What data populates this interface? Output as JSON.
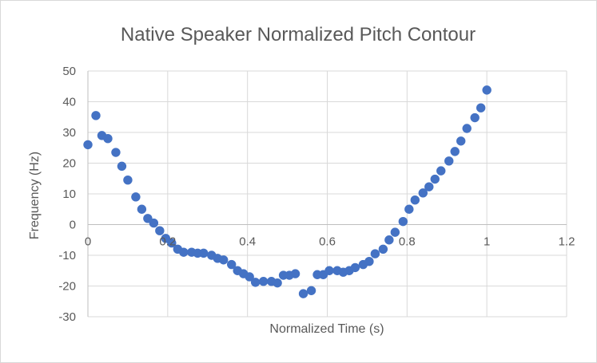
{
  "chart_data": {
    "type": "scatter",
    "title": "Native Speaker Normalized Pitch Contour",
    "xlabel": "Normalized Time (s)",
    "ylabel": "Frequency (Hz)",
    "xlim": [
      0,
      1.2
    ],
    "ylim": [
      -30,
      50
    ],
    "xticks": [
      0,
      0.2,
      0.4,
      0.6,
      0.8,
      1,
      1.2
    ],
    "yticks": [
      -30,
      -20,
      -10,
      0,
      10,
      20,
      30,
      40,
      50
    ],
    "xtick_labels": [
      "0",
      "0.2",
      "0.4",
      "0.6",
      "0.8",
      "1",
      "1.2"
    ],
    "ytick_labels": [
      "-30",
      "-20",
      "-10",
      "0",
      "10",
      "20",
      "30",
      "40",
      "50"
    ],
    "grid": true,
    "legend": "none",
    "series": [
      {
        "color": "#4472C4",
        "points": [
          {
            "x": 0.0,
            "y": 26
          },
          {
            "x": 0.02,
            "y": 35.5
          },
          {
            "x": 0.035,
            "y": 29
          },
          {
            "x": 0.05,
            "y": 28
          },
          {
            "x": 0.07,
            "y": 23.5
          },
          {
            "x": 0.085,
            "y": 19
          },
          {
            "x": 0.1,
            "y": 14.5
          },
          {
            "x": 0.12,
            "y": 9
          },
          {
            "x": 0.135,
            "y": 5
          },
          {
            "x": 0.15,
            "y": 2
          },
          {
            "x": 0.165,
            "y": 0.5
          },
          {
            "x": 0.18,
            "y": -2
          },
          {
            "x": 0.195,
            "y": -4.5
          },
          {
            "x": 0.21,
            "y": -6
          },
          {
            "x": 0.225,
            "y": -8
          },
          {
            "x": 0.24,
            "y": -9
          },
          {
            "x": 0.26,
            "y": -9
          },
          {
            "x": 0.275,
            "y": -9.3
          },
          {
            "x": 0.29,
            "y": -9.3
          },
          {
            "x": 0.31,
            "y": -10
          },
          {
            "x": 0.325,
            "y": -11
          },
          {
            "x": 0.34,
            "y": -11.5
          },
          {
            "x": 0.36,
            "y": -13
          },
          {
            "x": 0.375,
            "y": -15
          },
          {
            "x": 0.39,
            "y": -16
          },
          {
            "x": 0.405,
            "y": -17
          },
          {
            "x": 0.42,
            "y": -18.8
          },
          {
            "x": 0.44,
            "y": -18.5
          },
          {
            "x": 0.46,
            "y": -18.5
          },
          {
            "x": 0.475,
            "y": -19
          },
          {
            "x": 0.49,
            "y": -16.5
          },
          {
            "x": 0.505,
            "y": -16.5
          },
          {
            "x": 0.52,
            "y": -16
          },
          {
            "x": 0.54,
            "y": -22.5
          },
          {
            "x": 0.56,
            "y": -21.5
          },
          {
            "x": 0.575,
            "y": -16.3
          },
          {
            "x": 0.59,
            "y": -16.3
          },
          {
            "x": 0.605,
            "y": -15
          },
          {
            "x": 0.625,
            "y": -15
          },
          {
            "x": 0.64,
            "y": -15.5
          },
          {
            "x": 0.655,
            "y": -15
          },
          {
            "x": 0.67,
            "y": -14
          },
          {
            "x": 0.69,
            "y": -13
          },
          {
            "x": 0.705,
            "y": -12
          },
          {
            "x": 0.72,
            "y": -9.5
          },
          {
            "x": 0.74,
            "y": -8
          },
          {
            "x": 0.755,
            "y": -5
          },
          {
            "x": 0.77,
            "y": -2.5
          },
          {
            "x": 0.79,
            "y": 1
          },
          {
            "x": 0.805,
            "y": 5
          },
          {
            "x": 0.82,
            "y": 8
          },
          {
            "x": 0.84,
            "y": 10.3
          },
          {
            "x": 0.855,
            "y": 12.3
          },
          {
            "x": 0.87,
            "y": 14.8
          },
          {
            "x": 0.885,
            "y": 17.5
          },
          {
            "x": 0.905,
            "y": 20.7
          },
          {
            "x": 0.92,
            "y": 23.8
          },
          {
            "x": 0.935,
            "y": 27.2
          },
          {
            "x": 0.95,
            "y": 31.3
          },
          {
            "x": 0.97,
            "y": 34.8
          },
          {
            "x": 0.985,
            "y": 38
          },
          {
            "x": 1.0,
            "y": 43.8
          }
        ]
      }
    ]
  }
}
